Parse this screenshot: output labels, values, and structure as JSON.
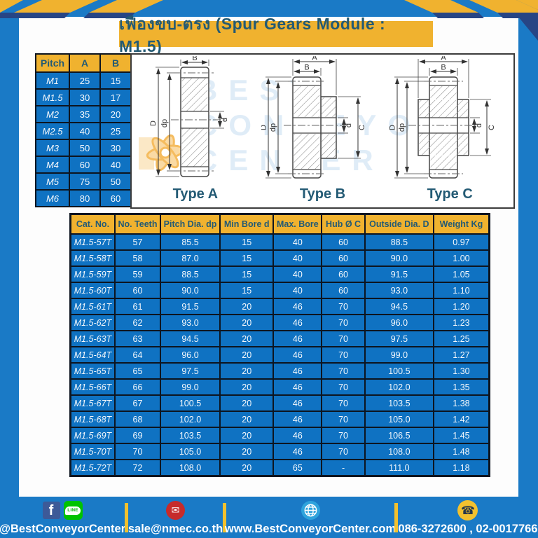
{
  "title": "เฟืองขบ-ตรง (Spur Gears Module : M1.5)",
  "pitch_table": {
    "headers": [
      "Pitch",
      "A",
      "B"
    ],
    "rows": [
      [
        "M1",
        "25",
        "15"
      ],
      [
        "M1.5",
        "30",
        "17"
      ],
      [
        "M2",
        "35",
        "20"
      ],
      [
        "M2.5",
        "40",
        "25"
      ],
      [
        "M3",
        "50",
        "30"
      ],
      [
        "M4",
        "60",
        "40"
      ],
      [
        "M5",
        "75",
        "50"
      ],
      [
        "M6",
        "80",
        "60"
      ]
    ]
  },
  "diagrams": {
    "types": [
      "Type A",
      "Type B",
      "Type C"
    ],
    "dims": {
      "A": "A",
      "B": "B",
      "D": "D",
      "dp": "dp",
      "d": "d",
      "C": "C"
    },
    "watermark": [
      "BEST",
      "CONVEYOR",
      "CENTER"
    ]
  },
  "spec_table": {
    "headers": [
      "Cat. No.",
      "No. Teeth",
      "Pitch Dia. dp",
      "Min Bore d",
      "Max. Bore",
      "Hub Ø C",
      "Outside Dia. D",
      "Weight Kg"
    ],
    "rows": [
      [
        "M1.5-57T",
        "57",
        "85.5",
        "15",
        "40",
        "60",
        "88.5",
        "0.97"
      ],
      [
        "M1.5-58T",
        "58",
        "87.0",
        "15",
        "40",
        "60",
        "90.0",
        "1.00"
      ],
      [
        "M1.5-59T",
        "59",
        "88.5",
        "15",
        "40",
        "60",
        "91.5",
        "1.05"
      ],
      [
        "M1.5-60T",
        "60",
        "90.0",
        "15",
        "40",
        "60",
        "93.0",
        "1.10"
      ],
      [
        "M1.5-61T",
        "61",
        "91.5",
        "20",
        "46",
        "70",
        "94.5",
        "1.20"
      ],
      [
        "M1.5-62T",
        "62",
        "93.0",
        "20",
        "46",
        "70",
        "96.0",
        "1.23"
      ],
      [
        "M1.5-63T",
        "63",
        "94.5",
        "20",
        "46",
        "70",
        "97.5",
        "1.25"
      ],
      [
        "M1.5-64T",
        "64",
        "96.0",
        "20",
        "46",
        "70",
        "99.0",
        "1.27"
      ],
      [
        "M1.5-65T",
        "65",
        "97.5",
        "20",
        "46",
        "70",
        "100.5",
        "1.30"
      ],
      [
        "M1.5-66T",
        "66",
        "99.0",
        "20",
        "46",
        "70",
        "102.0",
        "1.35"
      ],
      [
        "M1.5-67T",
        "67",
        "100.5",
        "20",
        "46",
        "70",
        "103.5",
        "1.38"
      ],
      [
        "M1.5-68T",
        "68",
        "102.0",
        "20",
        "46",
        "70",
        "105.0",
        "1.42"
      ],
      [
        "M1.5-69T",
        "69",
        "103.5",
        "20",
        "46",
        "70",
        "106.5",
        "1.45"
      ],
      [
        "M1.5-70T",
        "70",
        "105.0",
        "20",
        "46",
        "70",
        "108.0",
        "1.48"
      ],
      [
        "M1.5-72T",
        "72",
        "108.0",
        "20",
        "65",
        "-",
        "111.0",
        "1.18"
      ]
    ]
  },
  "footer": {
    "facebook_letter": "f",
    "line_label": "LINE",
    "social": "@BestConveyorCenter",
    "email": "sale@nmec.co.th",
    "website": "www.BestConveyorCenter.com",
    "phone": "086-3272600 , 02-0017766",
    "mail_glyph": "✉",
    "phone_glyph": "☎"
  },
  "colors": {
    "page_blue": "#1a7ac6",
    "cell_blue": "#0f72c2",
    "accent_yellow": "#f0b22f",
    "header_text": "#235a74",
    "border_dark": "#0d1520",
    "stripe_shadow": "#274585"
  }
}
